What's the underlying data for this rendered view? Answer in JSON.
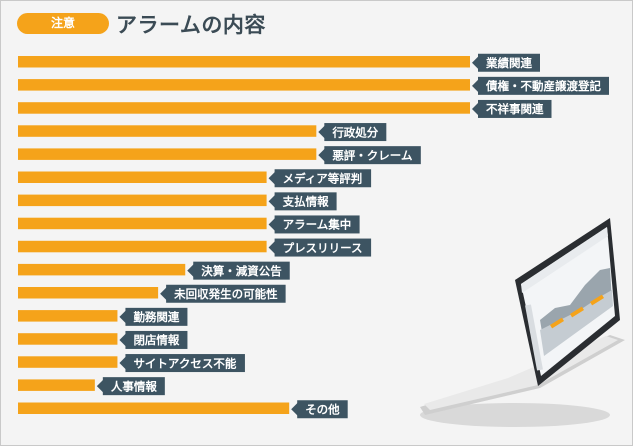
{
  "header": {
    "badge": "注意",
    "title": "アラームの内容"
  },
  "colors": {
    "bar": "#f5a31a",
    "label_bg": "#3d5462",
    "label_text": "#ffffff",
    "badge": "#f5a31a"
  },
  "chart_data": {
    "type": "bar",
    "orientation": "horizontal",
    "categories": [
      "業績関連",
      "債権・不動産譲渡登記",
      "不祥事関連",
      "行政処分",
      "悪評・クレーム",
      "メディア等評判",
      "支払情報",
      "アラーム集中",
      "プレスリリース",
      "決算・減資公告",
      "未回収発生の可能性",
      "勤務関連",
      "閉店情報",
      "サイトアクセス不能",
      "人事情報",
      "その他"
    ],
    "values": [
      100,
      100,
      100,
      66,
      66,
      55,
      55,
      55,
      55,
      37,
      31,
      22,
      22,
      22,
      17,
      60
    ],
    "xlim": [
      0,
      100
    ],
    "grid": false,
    "legend": "none"
  }
}
